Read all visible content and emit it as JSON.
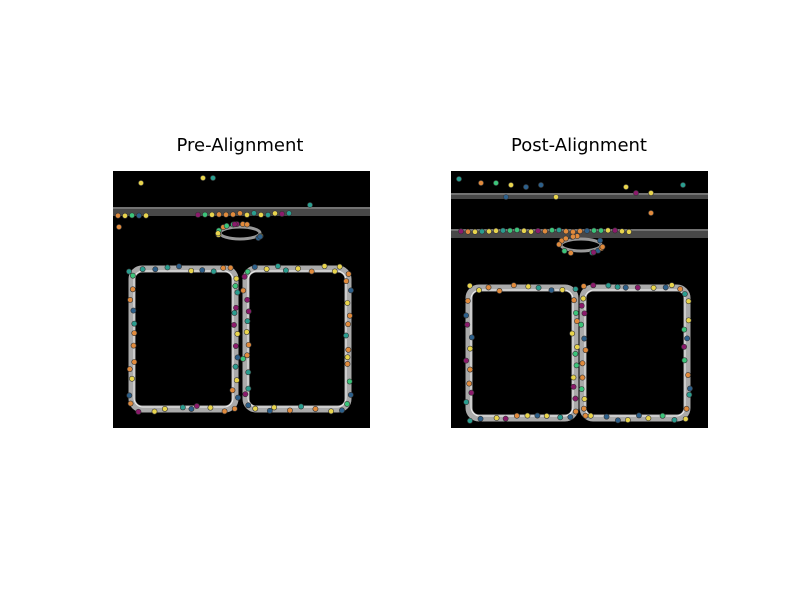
{
  "panels": [
    {
      "title": "Pre-Alignment"
    },
    {
      "title": "Post-Alignment"
    }
  ]
}
